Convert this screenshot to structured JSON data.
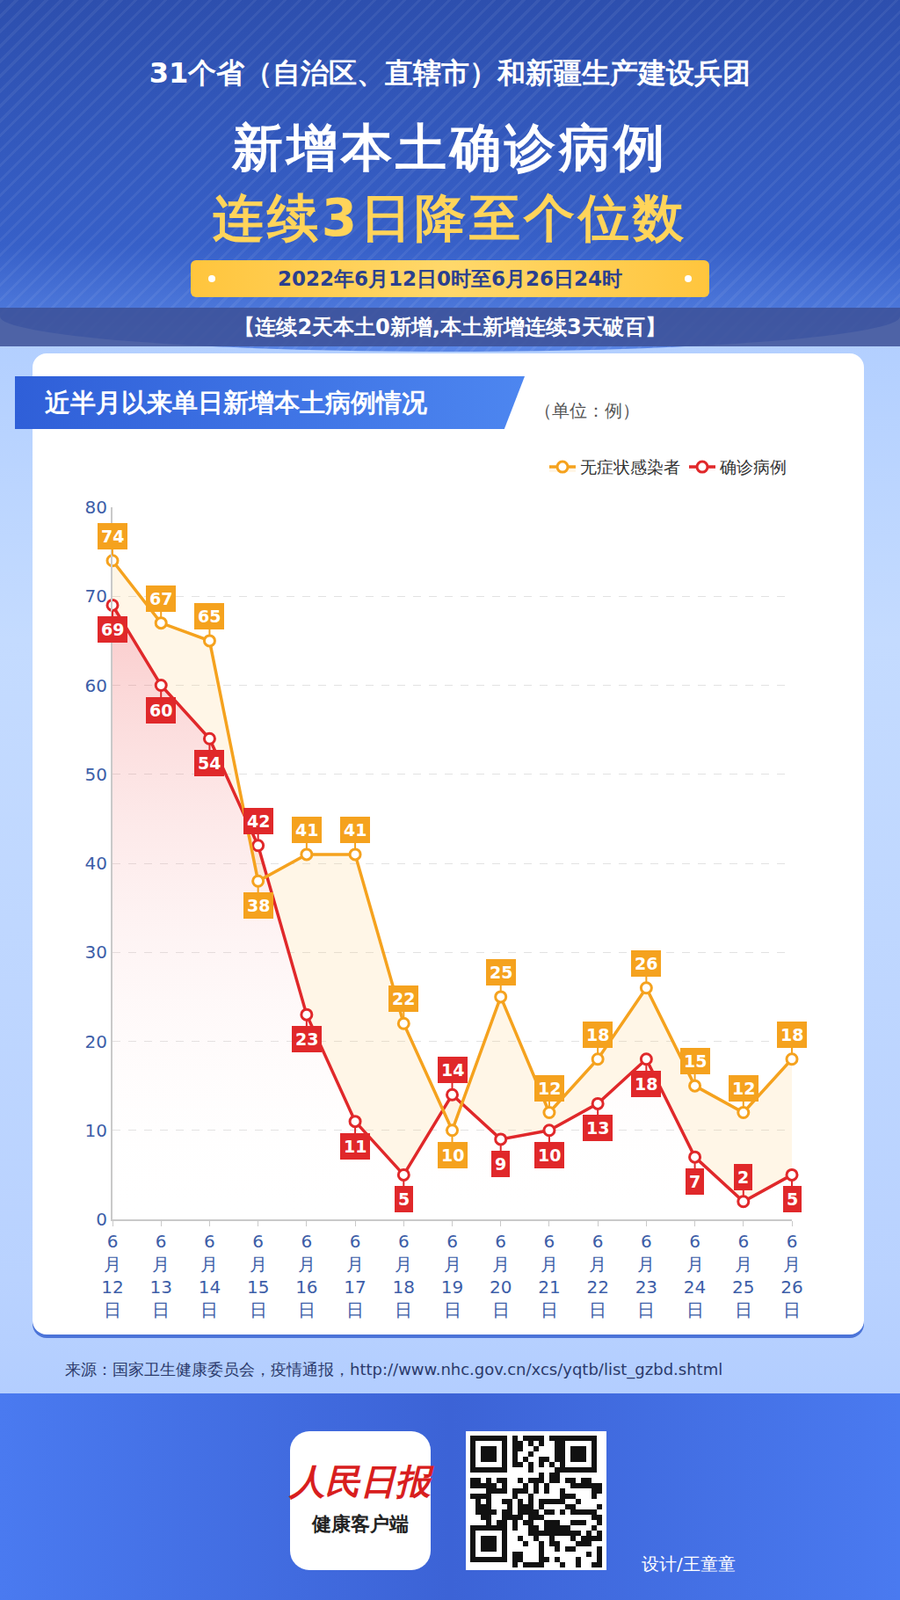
{
  "header": {
    "line1": "31个省（自治区、直辖市）和新疆生产建设兵团",
    "title": "新增本土确诊病例",
    "highlight": "连续3日降至个位数",
    "date": "2022年6月12日0时至6月26日24时",
    "banner": "【连续2天本土0新增,本土新增连续3天破百】"
  },
  "chart_data": {
    "type": "line",
    "title": "近半月以来单日新增本土病例情况",
    "subtitle": "（单位：例）",
    "categories": [
      "6月12日",
      "6月13日",
      "6月14日",
      "6月15日",
      "6月16日",
      "6月17日",
      "6月18日",
      "6月19日",
      "6月20日",
      "6月21日",
      "6月22日",
      "6月23日",
      "6月24日",
      "6月25日",
      "6月26日"
    ],
    "series": [
      {
        "name": "确诊病例",
        "color": "#e0282a",
        "marker": "circle",
        "values": [
          69,
          60,
          54,
          42,
          23,
          11,
          5,
          14,
          9,
          10,
          13,
          18,
          7,
          2,
          5
        ]
      },
      {
        "name": "无症状感染者",
        "color": "#f5a21e",
        "marker": "circle",
        "values": [
          74,
          67,
          65,
          38,
          41,
          41,
          22,
          10,
          25,
          12,
          18,
          26,
          15,
          12,
          18
        ]
      }
    ],
    "ylim": [
      0,
      80
    ],
    "yticks": [
      0,
      10,
      20,
      30,
      40,
      50,
      60,
      70,
      80
    ],
    "grid": true,
    "data_labels": true,
    "legend": "top right"
  },
  "footer": {
    "source": "来源：国家卫生健康委员会，疫情通报，http://www.nhc.gov.cn/xcs/yqtb/list_gzbd.shtml",
    "logo": [
      "人民日报",
      "健康客户端"
    ],
    "credit": "设计/王童童"
  }
}
